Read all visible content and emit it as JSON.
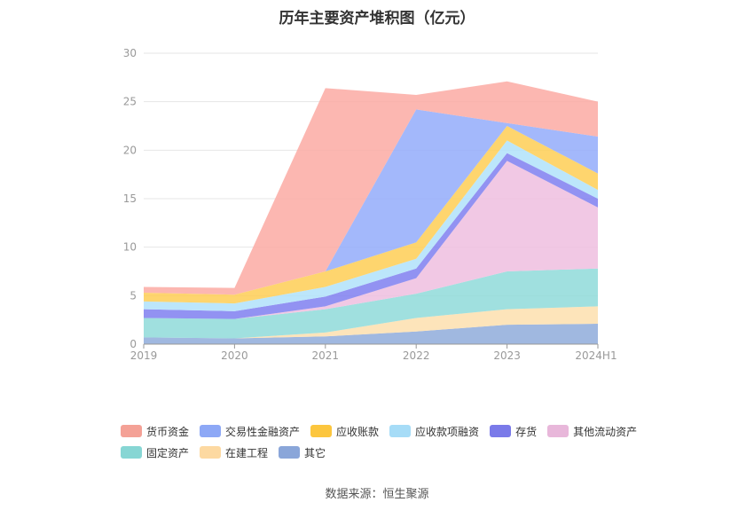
{
  "chart_data": {
    "type": "area",
    "stacked": true,
    "title": "历年主要资产堆积图（亿元）",
    "categories": [
      "2019",
      "2020",
      "2021",
      "2022",
      "2023",
      "2024H1"
    ],
    "ylim": [
      0,
      30
    ],
    "yticks": [
      0,
      5,
      10,
      15,
      20,
      25,
      30
    ],
    "grid": true,
    "legend_position": "bottom",
    "series": [
      {
        "name": "其它",
        "color": "#8fabdb",
        "values": [
          0.7,
          0.6,
          0.8,
          1.3,
          2.0,
          2.1
        ]
      },
      {
        "name": "在建工程",
        "color": "#fddfae",
        "values": [
          0.0,
          0.0,
          0.4,
          1.4,
          1.6,
          1.8
        ]
      },
      {
        "name": "固定资产",
        "color": "#8fdad9",
        "values": [
          2.0,
          2.0,
          2.4,
          2.5,
          3.9,
          3.9
        ]
      },
      {
        "name": "其他流动资产",
        "color": "#eebedf",
        "values": [
          0.0,
          0.0,
          0.3,
          1.6,
          11.4,
          6.3
        ]
      },
      {
        "name": "存货",
        "color": "#7f7ff0",
        "values": [
          0.9,
          0.8,
          1.0,
          1.0,
          0.8,
          0.9
        ]
      },
      {
        "name": "应收款项融资",
        "color": "#b0e2fa",
        "values": [
          0.8,
          0.8,
          1.0,
          1.0,
          1.3,
          0.9
        ]
      },
      {
        "name": "应收账款",
        "color": "#fece55",
        "values": [
          0.9,
          0.9,
          1.6,
          1.7,
          1.5,
          1.7
        ]
      },
      {
        "name": "交易性金融资产",
        "color": "#93abfa",
        "values": [
          0.0,
          0.0,
          0.0,
          13.7,
          0.3,
          3.8
        ]
      },
      {
        "name": "货币资金",
        "color": "#fcaaa3",
        "values": [
          0.6,
          0.7,
          18.9,
          1.5,
          4.3,
          3.6
        ]
      }
    ]
  },
  "legend": {
    "items": [
      {
        "label": "货币资金",
        "color": "#f4a196"
      },
      {
        "label": "交易性金融资产",
        "color": "#8da8f6"
      },
      {
        "label": "应收账款",
        "color": "#fcc63e"
      },
      {
        "label": "应收款项融资",
        "color": "#a6dcf7"
      },
      {
        "label": "存货",
        "color": "#7a7ae9"
      },
      {
        "label": "其他流动资产",
        "color": "#e8b7da"
      },
      {
        "label": "固定资产",
        "color": "#87d6d4"
      },
      {
        "label": "在建工程",
        "color": "#fdd9a1"
      },
      {
        "label": "其它",
        "color": "#8aa6d9"
      }
    ]
  },
  "source": "数据来源：恒生聚源"
}
